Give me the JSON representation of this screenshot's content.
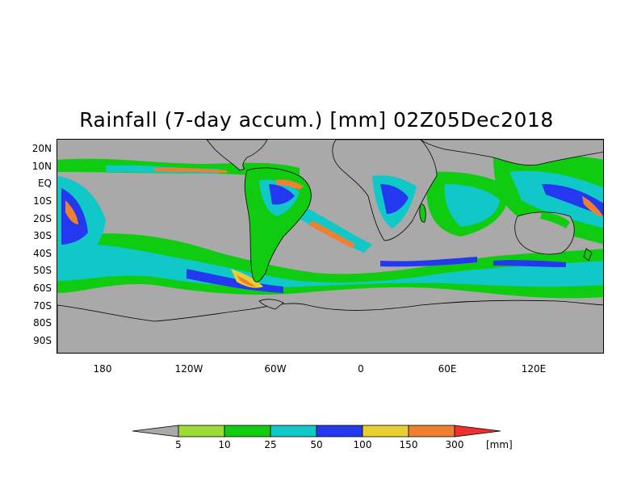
{
  "title": "Rainfall (7-day accum.) [mm] 02Z05Dec2018",
  "lat_labels": [
    "20N",
    "10N",
    "EQ",
    "10S",
    "20S",
    "30S",
    "40S",
    "50S",
    "60S",
    "70S",
    "80S",
    "90S"
  ],
  "lon_labels": [
    "180",
    "120W",
    "60W",
    "0",
    "60E",
    "120E"
  ],
  "legend": {
    "thresholds": [
      "5",
      "10",
      "25",
      "50",
      "100",
      "150",
      "300"
    ],
    "unit": "[mm]",
    "colors": {
      "below": "#a9a9a9",
      "5_10": "#9ddc34",
      "10_25": "#0fcc10",
      "25_50": "#10c8c8",
      "50_100": "#2438f0",
      "100_150": "#e8d030",
      "150_300": "#f08030",
      "above": "#f03030"
    }
  },
  "map": {
    "background_color": "#a9a9a9",
    "coast_color": "#000000"
  }
}
